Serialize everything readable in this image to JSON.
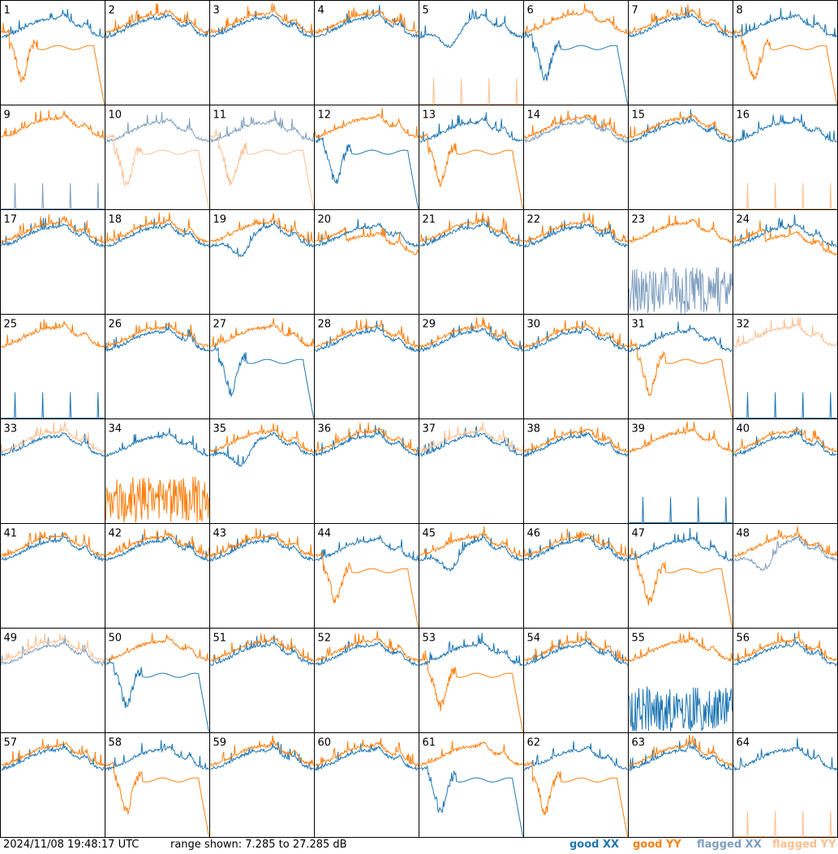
{
  "footer": {
    "timestamp": "2024/11/08 19:48:17 UTC",
    "range_text": "range shown: 7.285 to 27.285 dB"
  },
  "legend": [
    {
      "label": "good XX",
      "color": "#1f77b4"
    },
    {
      "label": "good YY",
      "color": "#ff7f0e"
    },
    {
      "label": "flagged XX",
      "color": "#7f9fbf"
    },
    {
      "label": "flagged YY",
      "color": "#ffbf8f"
    }
  ],
  "chart_data": {
    "type": "line",
    "layout": "8x8 small multiples",
    "ylim": [
      7.285,
      27.285
    ],
    "yunit": "dB",
    "panels": [
      {
        "id": "1",
        "xx": "good",
        "yy": "good",
        "xx_shape": "flat",
        "yy_shape": "rolloff"
      },
      {
        "id": "2",
        "xx": "good",
        "yy": "good",
        "xx_shape": "flat",
        "yy_shape": "flat"
      },
      {
        "id": "3",
        "xx": "good",
        "yy": "good",
        "xx_shape": "flat",
        "yy_shape": "flat"
      },
      {
        "id": "4",
        "xx": "good",
        "yy": "good",
        "xx_shape": "flat",
        "yy_shape": "flat"
      },
      {
        "id": "5",
        "xx": "good",
        "yy": "flagged",
        "xx_shape": "dip",
        "yy_shape": "dead"
      },
      {
        "id": "6",
        "xx": "good",
        "yy": "good",
        "xx_shape": "rolloff",
        "yy_shape": "flat"
      },
      {
        "id": "7",
        "xx": "good",
        "yy": "good",
        "xx_shape": "flat",
        "yy_shape": "flat"
      },
      {
        "id": "8",
        "xx": "good",
        "yy": "good",
        "xx_shape": "flat",
        "yy_shape": "rolloff"
      },
      {
        "id": "9",
        "xx": "flagged",
        "yy": "good",
        "xx_shape": "dead",
        "yy_shape": "flat"
      },
      {
        "id": "10",
        "xx": "flagged",
        "yy": "flagged",
        "xx_shape": "flat",
        "yy_shape": "rolloff"
      },
      {
        "id": "11",
        "xx": "flagged",
        "yy": "flagged",
        "xx_shape": "flat",
        "yy_shape": "rolloff"
      },
      {
        "id": "12",
        "xx": "good",
        "yy": "good",
        "xx_shape": "rolloff",
        "yy_shape": "flat"
      },
      {
        "id": "13",
        "xx": "good",
        "yy": "good",
        "xx_shape": "flat",
        "yy_shape": "rolloff"
      },
      {
        "id": "14",
        "xx": "flagged",
        "yy": "good",
        "xx_shape": "flat",
        "yy_shape": "flat"
      },
      {
        "id": "15",
        "xx": "good",
        "yy": "good",
        "xx_shape": "flat",
        "yy_shape": "flat"
      },
      {
        "id": "16",
        "xx": "good",
        "yy": "flagged",
        "xx_shape": "flat",
        "yy_shape": "dead"
      },
      {
        "id": "17",
        "xx": "good",
        "yy": "good",
        "xx_shape": "flat",
        "yy_shape": "flat"
      },
      {
        "id": "18",
        "xx": "good",
        "yy": "good",
        "xx_shape": "flat",
        "yy_shape": "flat"
      },
      {
        "id": "19",
        "xx": "good",
        "yy": "good",
        "xx_shape": "dip",
        "yy_shape": "flat"
      },
      {
        "id": "20",
        "xx": "good",
        "yy": "good",
        "xx_shape": "flat",
        "yy_shape": "low"
      },
      {
        "id": "21",
        "xx": "good",
        "yy": "good",
        "xx_shape": "flat",
        "yy_shape": "flat"
      },
      {
        "id": "22",
        "xx": "good",
        "yy": "good",
        "xx_shape": "flat",
        "yy_shape": "flat"
      },
      {
        "id": "23",
        "xx": "flagged",
        "yy": "good",
        "xx_shape": "noise",
        "yy_shape": "flat"
      },
      {
        "id": "24",
        "xx": "good",
        "yy": "good",
        "xx_shape": "flat",
        "yy_shape": "low"
      },
      {
        "id": "25",
        "xx": "good",
        "yy": "good",
        "xx_shape": "dead",
        "yy_shape": "flat"
      },
      {
        "id": "26",
        "xx": "good",
        "yy": "good",
        "xx_shape": "flat",
        "yy_shape": "flat"
      },
      {
        "id": "27",
        "xx": "good",
        "yy": "good",
        "xx_shape": "rolloff",
        "yy_shape": "flat"
      },
      {
        "id": "28",
        "xx": "good",
        "yy": "good",
        "xx_shape": "flat",
        "yy_shape": "flat"
      },
      {
        "id": "29",
        "xx": "good",
        "yy": "good",
        "xx_shape": "flat",
        "yy_shape": "flat"
      },
      {
        "id": "30",
        "xx": "good",
        "yy": "good",
        "xx_shape": "flat",
        "yy_shape": "flat"
      },
      {
        "id": "31",
        "xx": "good",
        "yy": "good",
        "xx_shape": "flat",
        "yy_shape": "rolloff"
      },
      {
        "id": "32",
        "xx": "good",
        "yy": "flagged",
        "xx_shape": "dead",
        "yy_shape": "flat"
      },
      {
        "id": "33",
        "xx": "good",
        "yy": "flagged",
        "xx_shape": "flat",
        "yy_shape": "flat"
      },
      {
        "id": "34",
        "xx": "good",
        "yy": "good",
        "xx_shape": "flat",
        "yy_shape": "noise"
      },
      {
        "id": "35",
        "xx": "good",
        "yy": "good",
        "xx_shape": "dip",
        "yy_shape": "flat"
      },
      {
        "id": "36",
        "xx": "good",
        "yy": "good",
        "xx_shape": "flat",
        "yy_shape": "flat"
      },
      {
        "id": "37",
        "xx": "good",
        "yy": "flagged",
        "xx_shape": "flat",
        "yy_shape": "flat"
      },
      {
        "id": "38",
        "xx": "good",
        "yy": "good",
        "xx_shape": "flat",
        "yy_shape": "flat"
      },
      {
        "id": "39",
        "xx": "good",
        "yy": "good",
        "xx_shape": "dead",
        "yy_shape": "flat"
      },
      {
        "id": "40",
        "xx": "good",
        "yy": "good",
        "xx_shape": "flat",
        "yy_shape": "flat"
      },
      {
        "id": "41",
        "xx": "good",
        "yy": "good",
        "xx_shape": "flat",
        "yy_shape": "flat"
      },
      {
        "id": "42",
        "xx": "good",
        "yy": "good",
        "xx_shape": "flat",
        "yy_shape": "flat"
      },
      {
        "id": "43",
        "xx": "good",
        "yy": "good",
        "xx_shape": "flat",
        "yy_shape": "flat"
      },
      {
        "id": "44",
        "xx": "good",
        "yy": "good",
        "xx_shape": "flat",
        "yy_shape": "rolloff"
      },
      {
        "id": "45",
        "xx": "good",
        "yy": "good",
        "xx_shape": "dip",
        "yy_shape": "flat"
      },
      {
        "id": "46",
        "xx": "good",
        "yy": "good",
        "xx_shape": "flat",
        "yy_shape": "flat"
      },
      {
        "id": "47",
        "xx": "good",
        "yy": "good",
        "xx_shape": "flat",
        "yy_shape": "rolloff"
      },
      {
        "id": "48",
        "xx": "flagged",
        "yy": "good",
        "xx_shape": "dip",
        "yy_shape": "flat"
      },
      {
        "id": "49",
        "xx": "flagged",
        "yy": "flagged",
        "xx_shape": "flat",
        "yy_shape": "flat"
      },
      {
        "id": "50",
        "xx": "good",
        "yy": "good",
        "xx_shape": "rolloff",
        "yy_shape": "flat"
      },
      {
        "id": "51",
        "xx": "good",
        "yy": "good",
        "xx_shape": "flat",
        "yy_shape": "flat"
      },
      {
        "id": "52",
        "xx": "good",
        "yy": "good",
        "xx_shape": "flat",
        "yy_shape": "flat"
      },
      {
        "id": "53",
        "xx": "good",
        "yy": "good",
        "xx_shape": "flat",
        "yy_shape": "rolloff"
      },
      {
        "id": "54",
        "xx": "good",
        "yy": "good",
        "xx_shape": "flat",
        "yy_shape": "flat"
      },
      {
        "id": "55",
        "xx": "good",
        "yy": "good",
        "xx_shape": "noise",
        "yy_shape": "flat"
      },
      {
        "id": "56",
        "xx": "good",
        "yy": "good",
        "xx_shape": "flat",
        "yy_shape": "flat"
      },
      {
        "id": "57",
        "xx": "good",
        "yy": "good",
        "xx_shape": "flat",
        "yy_shape": "flat"
      },
      {
        "id": "58",
        "xx": "good",
        "yy": "good",
        "xx_shape": "flat",
        "yy_shape": "rolloff"
      },
      {
        "id": "59",
        "xx": "good",
        "yy": "good",
        "xx_shape": "flat",
        "yy_shape": "flat"
      },
      {
        "id": "60",
        "xx": "good",
        "yy": "good",
        "xx_shape": "flat",
        "yy_shape": "flat"
      },
      {
        "id": "61",
        "xx": "good",
        "yy": "good",
        "xx_shape": "rolloff",
        "yy_shape": "flat"
      },
      {
        "id": "62",
        "xx": "good",
        "yy": "good",
        "xx_shape": "flat",
        "yy_shape": "rolloff"
      },
      {
        "id": "63",
        "xx": "good",
        "yy": "good",
        "xx_shape": "flat",
        "yy_shape": "flat"
      },
      {
        "id": "64",
        "xx": "good",
        "yy": "flagged",
        "xx_shape": "flat",
        "yy_shape": "dead"
      }
    ]
  }
}
